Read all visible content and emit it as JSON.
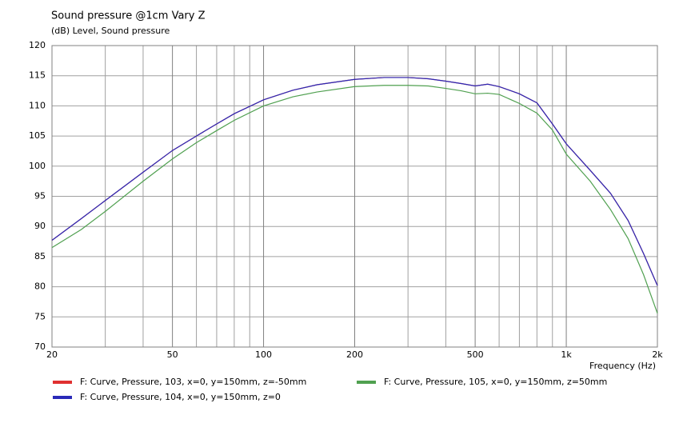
{
  "chart_data": {
    "type": "line",
    "title": "Sound pressure @1cm Vary Z",
    "subtitle": "(dB)  Level, Sound pressure",
    "xlabel": "Frequency  (Hz)",
    "xscale": "log",
    "grid": true,
    "xlim": [
      20,
      2000
    ],
    "ylim": [
      70,
      120
    ],
    "xticks": [
      20,
      50,
      100,
      200,
      500,
      {
        "value": 1000,
        "label": "1k"
      },
      {
        "value": 2000,
        "label": "2k"
      }
    ],
    "xminor": [
      30,
      40,
      60,
      70,
      80,
      90,
      300,
      400,
      600,
      700,
      800,
      900
    ],
    "yticks": [
      70,
      75,
      80,
      85,
      90,
      95,
      100,
      105,
      110,
      115,
      120
    ],
    "x": [
      20,
      25,
      30,
      40,
      50,
      60,
      70,
      80,
      100,
      125,
      150,
      200,
      250,
      300,
      350,
      400,
      450,
      500,
      550,
      600,
      700,
      800,
      900,
      1000,
      1200,
      1400,
      1600,
      1800,
      2000
    ],
    "series": [
      {
        "name": "F: Curve, Pressure, 103, x=0, y=150mm, z=-50mm",
        "color": "#e03030",
        "values": [
          87.7,
          91.3,
          94.3,
          99.0,
          102.6,
          105.0,
          107.0,
          108.7,
          111.0,
          112.6,
          113.5,
          114.4,
          114.7,
          114.7,
          114.5,
          114.1,
          113.7,
          113.3,
          113.6,
          113.2,
          112.0,
          110.5,
          107.0,
          103.7,
          99.3,
          95.5,
          91.0,
          85.5,
          80.2
        ]
      },
      {
        "name": "F: Curve, Pressure, 104, x=0, y=150mm, z=0",
        "color": "#2a2ab8",
        "values": [
          87.7,
          91.3,
          94.3,
          99.0,
          102.6,
          105.0,
          107.0,
          108.7,
          111.0,
          112.6,
          113.5,
          114.4,
          114.7,
          114.7,
          114.5,
          114.1,
          113.7,
          113.3,
          113.6,
          113.2,
          112.0,
          110.5,
          107.0,
          103.7,
          99.3,
          95.5,
          91.0,
          85.5,
          80.2
        ]
      },
      {
        "name": "F: Curve, Pressure, 105, x=0, y=150mm, z=50mm",
        "color": "#50a050",
        "values": [
          86.5,
          89.5,
          92.5,
          97.5,
          101.2,
          103.9,
          105.9,
          107.6,
          110.0,
          111.5,
          112.3,
          113.2,
          113.4,
          113.4,
          113.3,
          112.9,
          112.5,
          112.0,
          112.1,
          111.9,
          110.4,
          108.8,
          106.0,
          102.0,
          97.5,
          92.8,
          88.0,
          82.0,
          75.6
        ]
      }
    ]
  }
}
